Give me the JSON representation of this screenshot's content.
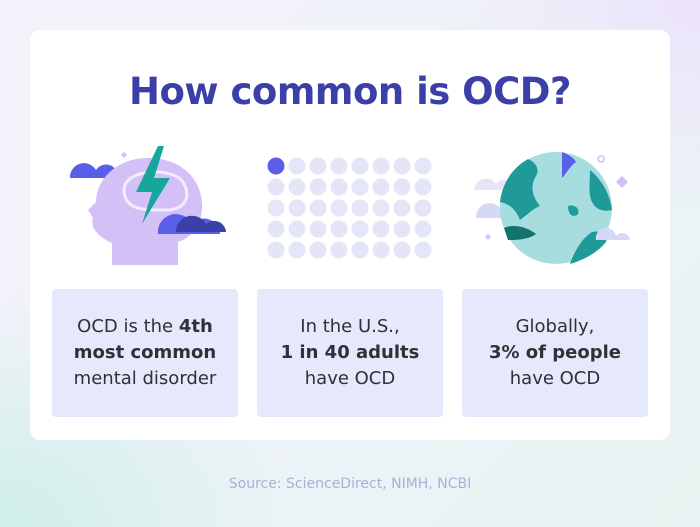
{
  "title": "How common is OCD?",
  "colors": {
    "title": "#3b40a8",
    "box_bg": "#e6e8fb",
    "dot_active": "#5a5ee8",
    "dot_inactive": "#e4e6f8",
    "globe_land": "#1f9a98",
    "globe_sea": "#a8dde0",
    "head": "#d3c0f6",
    "bolt": "#18a59a",
    "cloud": "#5a5ee8",
    "source": "#a9b0da"
  },
  "illustrations": {
    "left": "head-with-lightning-icon",
    "middle": "dot-grid-1-in-40",
    "right": "globe-icon"
  },
  "dot_grid": {
    "total": 40,
    "highlighted": 1
  },
  "stats": [
    {
      "pre": "OCD is the",
      "bold": "4th\nmost common",
      "post": "mental disorder"
    },
    {
      "pre": "In the U.S.,",
      "bold": "1 in 40 adults",
      "post": "have OCD"
    },
    {
      "pre": "Globally,",
      "bold": "3% of people",
      "post": "have OCD"
    }
  ],
  "stat_lines": [
    [
      "OCD is the ",
      "4th",
      "most common",
      "mental disorder"
    ],
    [
      "In the U.S.,",
      "1 in 40 adults",
      "have OCD"
    ],
    [
      "Globally,",
      "3% of people",
      "have OCD"
    ]
  ],
  "source": "Source: ScienceDirect, NIMH, NCBI"
}
